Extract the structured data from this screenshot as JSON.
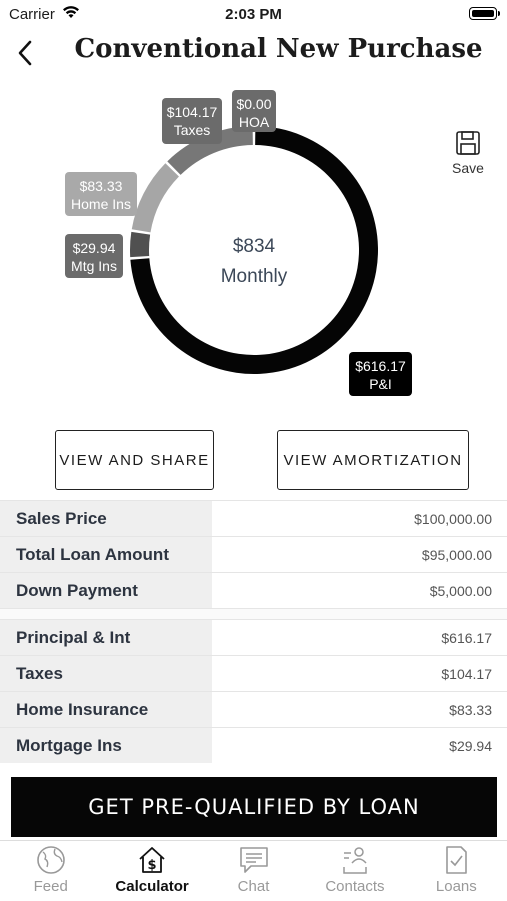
{
  "status_bar": {
    "carrier": "Carrier",
    "time": "2:03 PM"
  },
  "header": {
    "title": "Conventional New Purchase"
  },
  "chart_data": {
    "type": "pie",
    "center_amount": "$834",
    "center_label": "Monthly",
    "slices": [
      {
        "label": "P&I",
        "value": 616.17,
        "display": "$616.17",
        "color": "#050505"
      },
      {
        "label": "Mtg Ins",
        "value": 29.94,
        "display": "$29.94",
        "color": "#505050"
      },
      {
        "label": "Home Ins",
        "value": 83.33,
        "display": "$83.33",
        "color": "#a6a6a6"
      },
      {
        "label": "Taxes",
        "value": 104.17,
        "display": "$104.17",
        "color": "#777777"
      },
      {
        "label": "HOA",
        "value": 0.0,
        "display": "$0.00",
        "color": "#666666"
      }
    ]
  },
  "save": {
    "label": "Save"
  },
  "buttons": {
    "view_share": "VIEW AND SHARE",
    "view_amortization": "VIEW AMORTIZATION"
  },
  "summary": [
    {
      "label": "Sales Price",
      "value": "$100,000.00"
    },
    {
      "label": "Total Loan Amount",
      "value": "$95,000.00"
    },
    {
      "label": "Down Payment",
      "value": "$5,000.00"
    }
  ],
  "breakdown": [
    {
      "label": "Principal & Int",
      "value": "$616.17"
    },
    {
      "label": "Taxes",
      "value": "$104.17"
    },
    {
      "label": "Home Insurance",
      "value": "$83.33"
    },
    {
      "label": "Mortgage Ins",
      "value": "$29.94"
    }
  ],
  "cta": {
    "label": "GET PRE-QUALIFIED BY LOAN"
  },
  "tabs": [
    {
      "label": "Feed",
      "icon": "globe-icon"
    },
    {
      "label": "Calculator",
      "icon": "calculator-house-icon"
    },
    {
      "label": "Chat",
      "icon": "chat-icon"
    },
    {
      "label": "Contacts",
      "icon": "contacts-icon"
    },
    {
      "label": "Loans",
      "icon": "loans-icon"
    }
  ]
}
